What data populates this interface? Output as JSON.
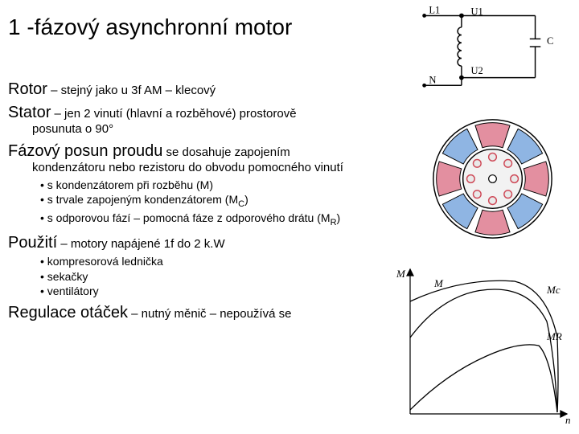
{
  "title": "1 -fázový asynchronní motor",
  "rotor": {
    "term": "Rotor",
    "desc": " – stejný jako u 3f AM – klecový"
  },
  "stator": {
    "term": "Stator",
    "desc": " – jen 2 vinutí (hlavní a rozběhové) prostorově",
    "cont": "posunuta o 90°"
  },
  "phase": {
    "term": "Fázový posun proudu",
    "desc": " se dosahuje zapojením",
    "cont": "kondenzátoru nebo rezistoru do obvodu pomocného vinutí",
    "bullets": [
      "s kondenzátorem při rozběhu (M)",
      "s trvale zapojeným kondenzátorem (M",
      "s odporovou fází – pomocná fáze z odporového drátu (M"
    ],
    "sub_c": "C",
    "sub_r": "R",
    "close": ")"
  },
  "usage": {
    "term": "Použití",
    "desc": " – motory napájené 1f do 2 k.W",
    "bullets": [
      "kompresorová lednička",
      "sekačky",
      "ventilátory"
    ]
  },
  "speed": {
    "term": "Regulace otáček",
    "desc": " – nutný měnič – nepoužívá se"
  },
  "circuit": {
    "labels": {
      "L1": "L1",
      "U1": "U1",
      "U2": "U2",
      "N": "N",
      "C": "C"
    },
    "color_wire": "#000000",
    "color_dot": "#000000"
  },
  "crosssection": {
    "inner_slots": 8,
    "pole_colors": [
      "#e38fa0",
      "#8fb5e3",
      "#e38fa0",
      "#8fb5e3",
      "#e38fa0",
      "#8fb5e3",
      "#e38fa0",
      "#8fb5e3"
    ],
    "slot_color": "#e9e9e9",
    "slot_ring": "#cf4a58",
    "rotor_fill": "#f2f2f2",
    "border": "#000000"
  },
  "graph": {
    "axis_color": "#000000",
    "xlabel": "n",
    "ylabel": "M",
    "curves": [
      {
        "label": "Mc",
        "label_x": 195,
        "label_y": 40
      },
      {
        "label": "M",
        "label_x": 55,
        "label_y": 32
      },
      {
        "label": "MR",
        "label_x": 195,
        "label_y": 98
      }
    ],
    "curve_color": "#000000"
  }
}
